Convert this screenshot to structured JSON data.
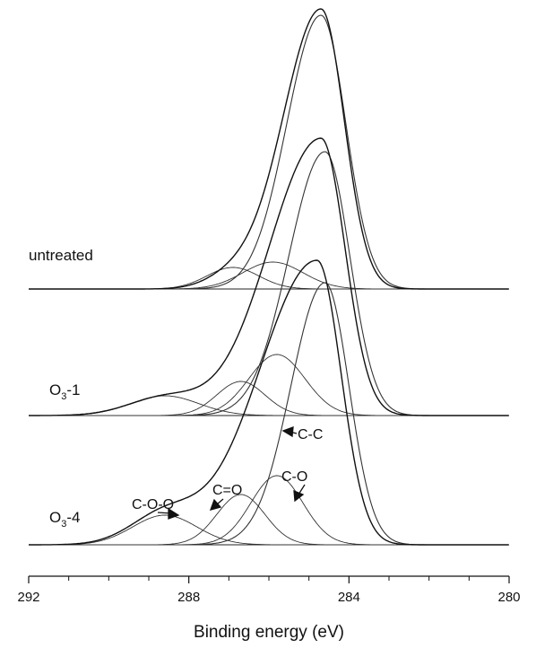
{
  "chart_data": {
    "type": "line",
    "title": "",
    "xlabel": "Binding energy (eV)",
    "ylabel": "",
    "xlim": [
      292,
      280
    ],
    "x_reversed": true,
    "xticks": [
      292,
      288,
      284,
      280
    ],
    "xtick_labels": [
      "292",
      "288",
      "284",
      "280"
    ],
    "grid": false,
    "series": [
      {
        "name": "untreated",
        "envelope_peak_x": 284.7,
        "components": [
          {
            "center": 284.7,
            "relative_height": 1.0
          },
          {
            "center": 285.9,
            "relative_height": 0.1
          },
          {
            "center": 286.9,
            "relative_height": 0.08
          }
        ]
      },
      {
        "name": "O3-1",
        "label_main": "O",
        "label_sub": "3",
        "label_suffix": "-1",
        "envelope_peak_x": 284.7,
        "components": [
          {
            "center": 284.6,
            "relative_height": 1.0
          },
          {
            "center": 285.8,
            "relative_height": 0.26
          },
          {
            "center": 286.7,
            "relative_height": 0.14
          },
          {
            "center": 288.6,
            "relative_height": 0.08
          }
        ]
      },
      {
        "name": "O3-4",
        "label_main": "O",
        "label_sub": "3",
        "label_suffix": "-4",
        "envelope_peak_x": 284.8,
        "components": [
          {
            "center": 284.6,
            "relative_height": 1.0,
            "label": "C-C"
          },
          {
            "center": 285.8,
            "relative_height": 0.26,
            "label": "C-O"
          },
          {
            "center": 286.7,
            "relative_height": 0.21,
            "label": "C=O"
          },
          {
            "center": 288.6,
            "relative_height": 0.15,
            "label": "C-O-O"
          }
        ]
      }
    ],
    "annotations": [
      "C-C",
      "C-O",
      "C=O",
      "C-O-O"
    ]
  }
}
